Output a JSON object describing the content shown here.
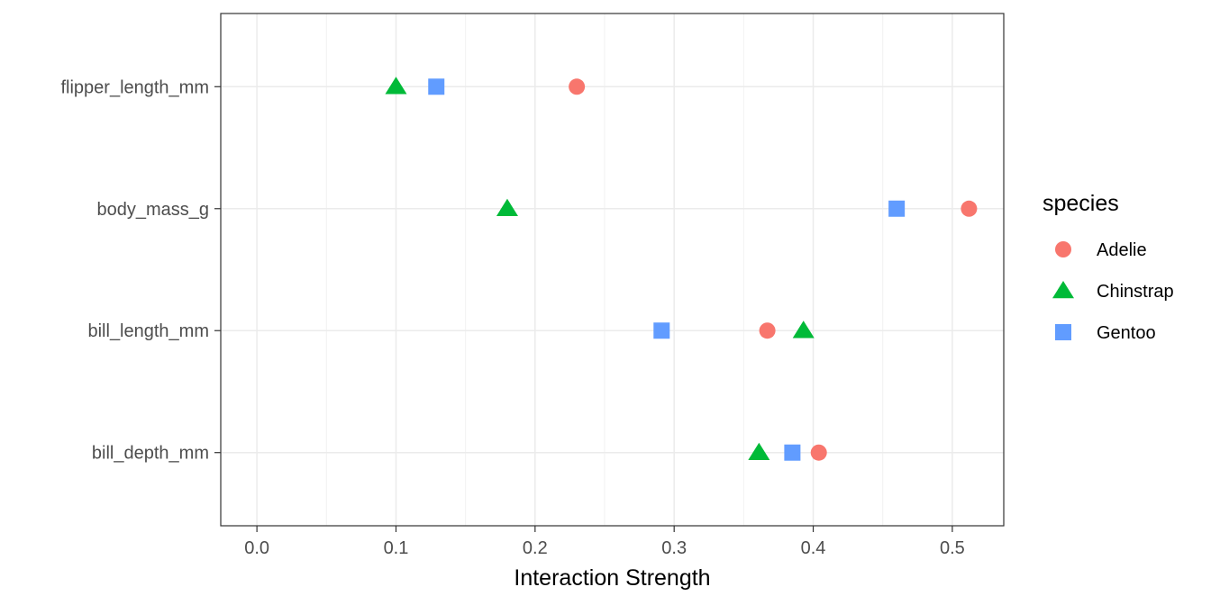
{
  "chart_data": {
    "type": "scatter",
    "xlabel": "Interaction Strength",
    "ylabel": "",
    "xlim": [
      -0.026,
      0.537
    ],
    "x_ticks": [
      0.0,
      0.1,
      0.2,
      0.3,
      0.4,
      0.5
    ],
    "x_tick_labels": [
      "0.0",
      "0.1",
      "0.2",
      "0.3",
      "0.4",
      "0.5"
    ],
    "categories": [
      "bill_depth_mm",
      "bill_length_mm",
      "body_mass_g",
      "flipper_length_mm"
    ],
    "grid": true,
    "legend": {
      "title": "species",
      "position": "right"
    },
    "series": [
      {
        "name": "Adelie",
        "shape": "circle",
        "color": "#F8766D",
        "values": [
          0.404,
          0.367,
          0.512,
          0.23
        ]
      },
      {
        "name": "Chinstrap",
        "shape": "triangle",
        "color": "#00BA38",
        "values": [
          0.361,
          0.393,
          0.18,
          0.1
        ]
      },
      {
        "name": "Gentoo",
        "shape": "square",
        "color": "#619CFF",
        "values": [
          0.385,
          0.291,
          0.46,
          0.129
        ]
      }
    ]
  }
}
